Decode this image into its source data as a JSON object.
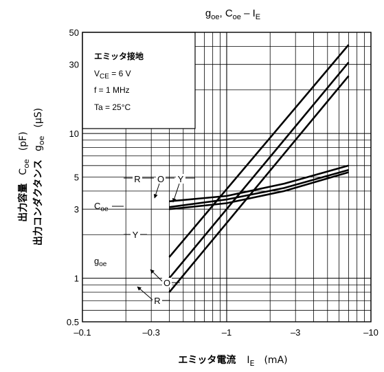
{
  "chart_data": {
    "type": "line",
    "title": {
      "base": "g",
      "sub1": "oe",
      "mid": ", C",
      "sub2": "oe",
      "dash": " – I",
      "sub3": "E"
    },
    "xlabel": {
      "text": "エミッタ電流",
      "sym": "I",
      "sub": "E",
      "unit": "(mA)"
    },
    "ylabel": {
      "line1": {
        "text": "出力容量",
        "sym": "C",
        "sub": "oe",
        "unit": "(pF)"
      },
      "line2": {
        "text": "出力コンダクタンス",
        "sym": "g",
        "sub": "oe",
        "unit": "(μS)"
      }
    },
    "x_scale": "log",
    "x_magnitude_range": [
      0.1,
      10
    ],
    "y_scale": "log",
    "ylim": [
      0.5,
      50
    ],
    "x_ticks": [
      {
        "value": 0.1,
        "label": "–0.1"
      },
      {
        "value": 0.3,
        "label": "–0.3"
      },
      {
        "value": 1,
        "label": "–1"
      },
      {
        "value": 3,
        "label": "–3"
      },
      {
        "value": 10,
        "label": "–10"
      }
    ],
    "y_ticks": [
      {
        "value": 0.5,
        "label": "0.5"
      },
      {
        "value": 1,
        "label": "1"
      },
      {
        "value": 3,
        "label": "3"
      },
      {
        "value": 5,
        "label": "5"
      },
      {
        "value": 10,
        "label": "10"
      },
      {
        "value": 30,
        "label": "30"
      },
      {
        "value": 50,
        "label": "50"
      }
    ],
    "grid": true,
    "conditions": {
      "heading": "エミッタ接地",
      "vce": {
        "sym": "V",
        "sub": "CE",
        "val": " = 6 V"
      },
      "f": "f = 1 MHz",
      "ta": "Ta = 25°C"
    },
    "series": [
      {
        "name": "goe-Y",
        "quantity": "goe",
        "rank": "Y",
        "x": [
          0.4,
          7
        ],
        "values": [
          1.4,
          41
        ]
      },
      {
        "name": "goe-O",
        "quantity": "goe",
        "rank": "O",
        "x": [
          0.4,
          7
        ],
        "values": [
          1.0,
          31
        ]
      },
      {
        "name": "goe-R",
        "quantity": "goe",
        "rank": "R",
        "x": [
          0.4,
          7
        ],
        "values": [
          0.8,
          25
        ]
      },
      {
        "name": "Coe-R",
        "quantity": "Coe",
        "rank": "R",
        "x": [
          0.4,
          1.0,
          2.5,
          7
        ],
        "values": [
          3.4,
          3.7,
          4.5,
          6.0
        ]
      },
      {
        "name": "Coe-O",
        "quantity": "Coe",
        "rank": "O",
        "x": [
          0.4,
          1.0,
          2.5,
          7
        ],
        "values": [
          3.1,
          3.5,
          4.2,
          5.6
        ]
      },
      {
        "name": "Coe-Y",
        "quantity": "Coe",
        "rank": "Y",
        "x": [
          0.4,
          1.0,
          2.5,
          7
        ],
        "values": [
          3.0,
          3.3,
          4.0,
          5.4
        ]
      }
    ],
    "annotations": {
      "coe": {
        "base": "C",
        "sub": "oe"
      },
      "goe": {
        "base": "g",
        "sub": "oe"
      },
      "upper_R": "R",
      "upper_O": "O",
      "upper_Y": "Y",
      "mid_Y": "Y",
      "lower_O": "O",
      "lower_R": "R"
    }
  }
}
